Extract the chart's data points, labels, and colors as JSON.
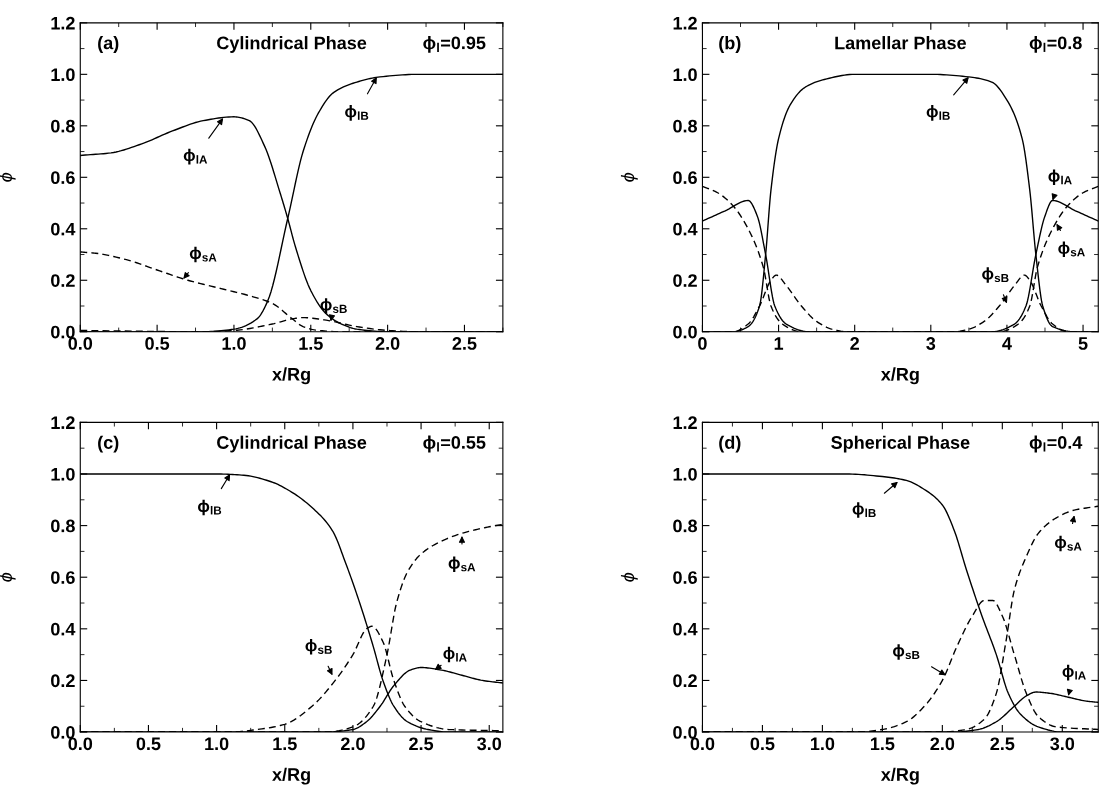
{
  "chart_data": [
    {
      "type": "line",
      "title": "Cylindrical Phase",
      "xlabel": "x/Rg",
      "ylabel": "ϕ",
      "xlim": [
        0,
        2.75
      ],
      "ylim": [
        0,
        1.2
      ],
      "xticks": [
        {
          "value": 0,
          "label": "0.0"
        },
        {
          "value": 0.5,
          "label": "0.5"
        },
        {
          "value": 1,
          "label": "1.0"
        },
        {
          "value": 1.5,
          "label": "1.5"
        },
        {
          "value": 2,
          "label": "2.0"
        },
        {
          "value": 2.5,
          "label": "2.5"
        }
      ],
      "yticks": [
        {
          "value": 0,
          "label": "0.0"
        },
        {
          "value": 0.2,
          "label": "0.2"
        },
        {
          "value": 0.4,
          "label": "0.4"
        },
        {
          "value": 0.6,
          "label": "0.6"
        },
        {
          "value": 0.8,
          "label": "0.8"
        },
        {
          "value": 1,
          "label": "1.0"
        },
        {
          "value": 1.2,
          "label": "1.2"
        }
      ],
      "annotations": [
        "(a)",
        "ϕ$_{l}$=0.95",
        {
          "text": "ϕ$_{lA}$",
          "x": 0.93,
          "y": 0.83
        },
        {
          "text": "ϕ$_{lB}$",
          "x": 1.93,
          "y": 0.99
        },
        {
          "text": "ϕ$_{sA}$",
          "x": 0.67,
          "y": 0.205
        },
        {
          "text": "ϕ$_{sB}$",
          "x": 1.63,
          "y": 0.04
        }
      ],
      "series": [
        {
          "color": "#000000",
          "line_style": "solid",
          "x": [
            0,
            0.2,
            0.4,
            0.6,
            0.8,
            1.0,
            1.1,
            1.2,
            1.3,
            1.35,
            1.4,
            1.5,
            1.6,
            1.7,
            1.8,
            2.0,
            2.75
          ],
          "values": [
            0.685,
            0.695,
            0.73,
            0.78,
            0.82,
            0.835,
            0.82,
            0.72,
            0.54,
            0.44,
            0.33,
            0.16,
            0.07,
            0.03,
            0.01,
            0.0,
            0.0
          ]
        },
        {
          "color": "#000000",
          "line_style": "solid",
          "x": [
            0,
            0.8,
            1.0,
            1.15,
            1.22,
            1.35,
            1.45,
            1.55,
            1.65,
            1.8,
            1.95,
            2.2,
            2.75
          ],
          "values": [
            0.0,
            0.0,
            0.01,
            0.05,
            0.12,
            0.44,
            0.7,
            0.85,
            0.93,
            0.97,
            0.99,
            1.0,
            1.0
          ]
        },
        {
          "color": "#000000",
          "line_style": "dashed",
          "x": [
            0,
            0.1,
            0.3,
            0.5,
            0.7,
            0.9,
            1.1,
            1.25,
            1.38,
            1.45,
            1.55,
            1.7,
            2.75
          ],
          "values": [
            0.31,
            0.305,
            0.28,
            0.24,
            0.2,
            0.17,
            0.14,
            0.11,
            0.05,
            0.02,
            0.005,
            0.0,
            0.0
          ]
        },
        {
          "color": "#000000",
          "line_style": "dashed",
          "x": [
            0,
            0.8,
            1.0,
            1.25,
            1.38,
            1.45,
            1.6,
            1.8,
            2.0,
            2.2,
            2.75
          ],
          "values": [
            0.005,
            0.0,
            0.005,
            0.03,
            0.05,
            0.055,
            0.045,
            0.02,
            0.005,
            0.0,
            0.0
          ]
        }
      ]
    },
    {
      "type": "line",
      "title": "Lamellar Phase",
      "xlabel": "x/Rg",
      "ylabel": "ϕ",
      "xlim": [
        0,
        5.2
      ],
      "ylim": [
        0,
        1.2
      ],
      "xticks": [
        0,
        1,
        2,
        3,
        4,
        5
      ],
      "yticks": [
        {
          "value": 0,
          "label": "0.0"
        },
        {
          "value": 0.2,
          "label": "0.2"
        },
        {
          "value": 0.4,
          "label": "0.4"
        },
        {
          "value": 0.6,
          "label": "0.6"
        },
        {
          "value": 0.8,
          "label": "0.8"
        },
        {
          "value": 1,
          "label": "1.0"
        },
        {
          "value": 1.2,
          "label": "1.2"
        }
      ],
      "annotations": [
        "(b)",
        "ϕ$_{l}$=0.8",
        {
          "text": "ϕ$_{lB}$",
          "x": 3.5,
          "y": 0.99
        },
        {
          "text": "ϕ$_{lA}$",
          "x": 4.6,
          "y": 0.51
        },
        {
          "text": "ϕ$_{sA}$",
          "x": 4.65,
          "y": 0.42
        },
        {
          "text": "ϕ$_{sB}$",
          "x": 4.0,
          "y": 0.11
        }
      ],
      "series": [
        {
          "color": "#000000",
          "line_style": "solid",
          "x": [
            0,
            0.4,
            0.6,
            0.75,
            0.83,
            0.9,
            1.0,
            1.15,
            1.35,
            1.6,
            2.0,
            3.0,
            3.5,
            3.8,
            4.0,
            4.2,
            4.3,
            4.38,
            4.47,
            4.6,
            4.9,
            5.2
          ],
          "values": [
            0.0,
            0.0,
            0.02,
            0.1,
            0.3,
            0.55,
            0.75,
            0.88,
            0.95,
            0.98,
            1.0,
            1.0,
            0.99,
            0.97,
            0.9,
            0.75,
            0.55,
            0.3,
            0.1,
            0.02,
            0.0,
            0.0
          ]
        },
        {
          "color": "#000000",
          "line_style": "solid",
          "x": [
            0,
            0.3,
            0.6,
            0.72,
            0.83,
            0.95,
            1.1,
            1.4,
            3.8,
            4.1,
            4.25,
            4.38,
            4.5,
            4.6,
            4.9,
            5.2
          ],
          "values": [
            0.43,
            0.47,
            0.51,
            0.45,
            0.3,
            0.1,
            0.03,
            0.0,
            0.0,
            0.03,
            0.1,
            0.3,
            0.45,
            0.51,
            0.47,
            0.43
          ]
        },
        {
          "color": "#000000",
          "line_style": "dashed",
          "x": [
            0,
            0.2,
            0.4,
            0.6,
            0.8,
            0.9,
            1.05,
            1.3,
            3.9,
            4.15,
            4.3,
            4.4,
            4.6,
            4.8,
            5.0,
            5.2
          ],
          "values": [
            0.565,
            0.54,
            0.49,
            0.4,
            0.25,
            0.1,
            0.03,
            0.0,
            0.0,
            0.03,
            0.1,
            0.25,
            0.4,
            0.49,
            0.54,
            0.565
          ]
        },
        {
          "color": "#000000",
          "line_style": "dashed",
          "x": [
            0,
            0.4,
            0.6,
            0.75,
            0.9,
            0.97,
            1.1,
            1.3,
            1.5,
            1.7,
            1.9,
            3.3,
            3.5,
            3.7,
            3.9,
            4.1,
            4.23,
            4.3,
            4.45,
            4.6,
            4.8,
            5.2
          ],
          "values": [
            0.0,
            0.0,
            0.03,
            0.1,
            0.2,
            0.22,
            0.18,
            0.1,
            0.04,
            0.01,
            0.0,
            0.0,
            0.01,
            0.04,
            0.1,
            0.18,
            0.22,
            0.2,
            0.1,
            0.03,
            0.0,
            0.0
          ]
        }
      ]
    },
    {
      "type": "line",
      "title": "Cylindrical Phase",
      "xlabel": "x/Rg",
      "ylabel": "ϕ",
      "xlim": [
        0,
        3.1
      ],
      "ylim": [
        0,
        1.2
      ],
      "xticks": [
        {
          "value": 0,
          "label": "0.0"
        },
        {
          "value": 0.5,
          "label": "0.5"
        },
        {
          "value": 1,
          "label": "1.0"
        },
        {
          "value": 1.5,
          "label": "1.5"
        },
        {
          "value": 2,
          "label": "2.0"
        },
        {
          "value": 2.5,
          "label": "2.5"
        },
        {
          "value": 3,
          "label": "3.0"
        }
      ],
      "yticks": [
        {
          "value": 0,
          "label": "0.0"
        },
        {
          "value": 0.2,
          "label": "0.2"
        },
        {
          "value": 0.4,
          "label": "0.4"
        },
        {
          "value": 0.6,
          "label": "0.6"
        },
        {
          "value": 0.8,
          "label": "0.8"
        },
        {
          "value": 1,
          "label": "1.0"
        },
        {
          "value": 1.2,
          "label": "1.2"
        }
      ],
      "annotations": [
        "(c)",
        "ϕ$_{l}$=0.55",
        {
          "text": "ϕ$_{lB}$",
          "x": 1.1,
          "y": 1.0
        },
        {
          "text": "ϕ$_{sA}$",
          "x": 2.8,
          "y": 0.76
        },
        {
          "text": "ϕ$_{sB}$",
          "x": 1.85,
          "y": 0.22
        },
        {
          "text": "ϕ$_{lA}$",
          "x": 2.6,
          "y": 0.24
        }
      ],
      "series": [
        {
          "color": "#000000",
          "line_style": "solid",
          "x": [
            0,
            1.0,
            1.2,
            1.4,
            1.55,
            1.7,
            1.85,
            1.95,
            2.05,
            2.15,
            2.22,
            2.3,
            2.4,
            2.55,
            2.7,
            3.1
          ],
          "values": [
            1.0,
            1.0,
            0.995,
            0.97,
            0.93,
            0.87,
            0.78,
            0.65,
            0.5,
            0.33,
            0.2,
            0.1,
            0.04,
            0.01,
            0.0,
            0.0
          ]
        },
        {
          "color": "#000000",
          "line_style": "solid",
          "x": [
            0,
            1.8,
            2.0,
            2.1,
            2.2,
            2.3,
            2.42,
            2.5,
            2.65,
            2.8,
            2.95,
            3.1
          ],
          "values": [
            0.0,
            0.0,
            0.01,
            0.04,
            0.1,
            0.18,
            0.24,
            0.25,
            0.24,
            0.22,
            0.2,
            0.19
          ]
        },
        {
          "color": "#000000",
          "line_style": "dashed",
          "x": [
            0,
            1.1,
            1.3,
            1.5,
            1.7,
            1.87,
            2.0,
            2.1,
            2.14,
            2.22,
            2.3,
            2.38,
            2.5,
            2.7,
            3.1
          ],
          "values": [
            0.0,
            0.0,
            0.01,
            0.03,
            0.1,
            0.2,
            0.3,
            0.4,
            0.41,
            0.35,
            0.2,
            0.1,
            0.04,
            0.01,
            0.005
          ]
        },
        {
          "color": "#000000",
          "line_style": "dashed",
          "x": [
            0,
            1.8,
            2.0,
            2.15,
            2.25,
            2.32,
            2.4,
            2.5,
            2.65,
            2.8,
            2.95,
            3.1
          ],
          "values": [
            0.0,
            0.0,
            0.02,
            0.1,
            0.3,
            0.5,
            0.62,
            0.69,
            0.74,
            0.77,
            0.79,
            0.805
          ]
        }
      ]
    },
    {
      "type": "line",
      "title": "Spherical Phase",
      "xlabel": "x/Rg",
      "ylabel": "ϕ",
      "xlim": [
        0,
        3.3
      ],
      "ylim": [
        0,
        1.2
      ],
      "xticks": [
        {
          "value": 0,
          "label": "0.0"
        },
        {
          "value": 0.5,
          "label": "0.5"
        },
        {
          "value": 1,
          "label": "1.0"
        },
        {
          "value": 1.5,
          "label": "1.5"
        },
        {
          "value": 2,
          "label": "2.0"
        },
        {
          "value": 2.5,
          "label": "2.5"
        },
        {
          "value": 3,
          "label": "3.0"
        }
      ],
      "yticks": [
        {
          "value": 0,
          "label": "0.0"
        },
        {
          "value": 0.2,
          "label": "0.2"
        },
        {
          "value": 0.4,
          "label": "0.4"
        },
        {
          "value": 0.6,
          "label": "0.6"
        },
        {
          "value": 0.8,
          "label": "0.8"
        },
        {
          "value": 1,
          "label": "1.0"
        },
        {
          "value": 1.2,
          "label": "1.2"
        }
      ],
      "annotations": [
        "(d)",
        "ϕ$_{l}$=0.4",
        {
          "text": "ϕ$_{lB}$",
          "x": 1.63,
          "y": 0.97
        },
        {
          "text": "ϕ$_{sA}$",
          "x": 3.1,
          "y": 0.84
        },
        {
          "text": "ϕ$_{sB}$",
          "x": 2.03,
          "y": 0.22
        },
        {
          "text": "ϕ$_{lA}$",
          "x": 3.05,
          "y": 0.14
        }
      ],
      "series": [
        {
          "color": "#000000",
          "line_style": "solid",
          "x": [
            0,
            1.2,
            1.5,
            1.7,
            1.85,
            2.0,
            2.1,
            2.2,
            2.33,
            2.45,
            2.55,
            2.65,
            2.8,
            3.0,
            3.3
          ],
          "values": [
            1.0,
            1.0,
            0.99,
            0.975,
            0.94,
            0.88,
            0.78,
            0.63,
            0.45,
            0.3,
            0.15,
            0.07,
            0.02,
            0.0,
            0.0
          ]
        },
        {
          "color": "#000000",
          "line_style": "solid",
          "x": [
            0,
            2.1,
            2.3,
            2.45,
            2.6,
            2.7,
            2.78,
            2.9,
            3.05,
            3.2,
            3.3
          ],
          "values": [
            0.0,
            0.0,
            0.01,
            0.04,
            0.1,
            0.14,
            0.155,
            0.15,
            0.135,
            0.12,
            0.115
          ]
        },
        {
          "color": "#000000",
          "line_style": "dashed",
          "x": [
            0,
            1.3,
            1.5,
            1.7,
            1.85,
            2.0,
            2.12,
            2.25,
            2.35,
            2.42,
            2.5,
            2.6,
            2.7,
            2.8,
            2.95,
            3.3
          ],
          "values": [
            0.0,
            0.0,
            0.01,
            0.04,
            0.1,
            0.2,
            0.33,
            0.45,
            0.51,
            0.51,
            0.45,
            0.3,
            0.15,
            0.06,
            0.02,
            0.01
          ]
        },
        {
          "color": "#000000",
          "line_style": "dashed",
          "x": [
            0,
            2.0,
            2.2,
            2.35,
            2.45,
            2.53,
            2.6,
            2.7,
            2.8,
            2.95,
            3.1,
            3.3
          ],
          "values": [
            0.0,
            0.0,
            0.01,
            0.05,
            0.15,
            0.35,
            0.55,
            0.68,
            0.77,
            0.83,
            0.86,
            0.875
          ]
        }
      ]
    }
  ]
}
